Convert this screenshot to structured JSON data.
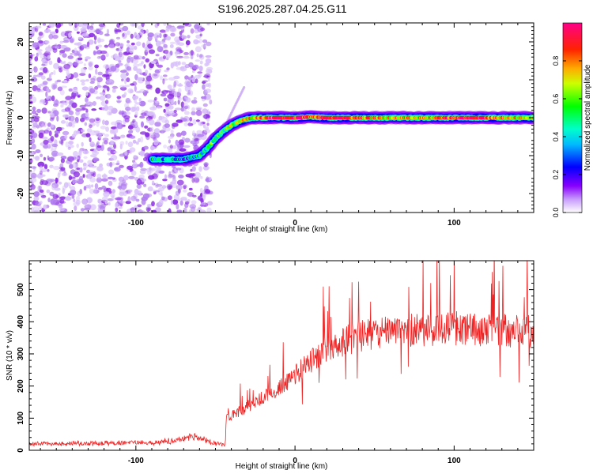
{
  "title": "S196.2025.287.04.25.G11",
  "chart_data": [
    {
      "id": "spectrogram",
      "type": "heatmap",
      "xlabel": "Height of straight line (km)",
      "ylabel": "Frequency (Hz)",
      "xlim": [
        -167,
        150
      ],
      "ylim": [
        -25,
        25
      ],
      "xticks": [
        -100,
        0,
        100
      ],
      "yticks": [
        -20,
        -10,
        0,
        10,
        20
      ],
      "colorbar": {
        "label": "Normalized spectral amplitude",
        "range": [
          0,
          1
        ],
        "ticks": [
          0.0,
          0.2,
          0.4,
          0.6,
          0.8
        ],
        "colormap": [
          "#ffffff",
          "#8800ff",
          "#0000ff",
          "#00ffff",
          "#00ff00",
          "#ffff00",
          "#ff8800",
          "#ff0000",
          "#ff0088"
        ]
      },
      "noise_region_x": [
        -167,
        -53
      ],
      "trace": {
        "x": [
          -90,
          -80,
          -70,
          -60,
          -55,
          -50,
          -45,
          -40,
          -35,
          -30,
          -25,
          -20,
          -10,
          0,
          10,
          20,
          30,
          50,
          70,
          90,
          110,
          130,
          150
        ],
        "frequency": [
          -11,
          -11,
          -11,
          -10,
          -8,
          -5.5,
          -3.5,
          -2,
          -1,
          -0.3,
          0,
          0,
          0,
          0,
          0.2,
          0,
          0,
          0,
          0,
          0,
          0,
          0,
          0
        ],
        "amplitude": [
          0.45,
          0.35,
          0.3,
          0.45,
          0.5,
          0.55,
          0.55,
          0.6,
          0.65,
          0.7,
          0.75,
          0.8,
          0.9,
          0.95,
          0.8,
          0.95,
          0.9,
          0.75,
          0.7,
          0.8,
          0.95,
          0.75,
          0.65
        ]
      },
      "faint_streak": {
        "x": [
          -45,
          -32
        ],
        "frequency": [
          -3,
          8
        ]
      }
    },
    {
      "id": "snr",
      "type": "line",
      "xlabel": "Height of straight line (km)",
      "ylabel": "SNR (10 * v/v)",
      "xlim": [
        -167,
        150
      ],
      "ylim": [
        0,
        590
      ],
      "xticks": [
        -100,
        0,
        100
      ],
      "yticks": [
        0,
        100,
        200,
        300,
        400,
        500
      ],
      "color": "#ee2222",
      "envelope": {
        "x": [
          -167,
          -120,
          -90,
          -75,
          -65,
          -58,
          -52,
          -44,
          -43,
          -35,
          -25,
          -15,
          -5,
          5,
          15,
          25,
          40,
          60,
          80,
          100,
          120,
          150
        ],
        "y": [
          20,
          22,
          25,
          30,
          45,
          35,
          25,
          15,
          100,
          120,
          150,
          180,
          210,
          260,
          300,
          330,
          355,
          370,
          375,
          380,
          375,
          370
        ]
      },
      "spike_start_x": -43,
      "max_peak": {
        "x": 100,
        "y": 585
      }
    }
  ]
}
